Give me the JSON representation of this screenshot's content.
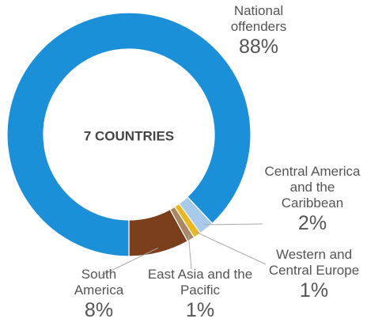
{
  "chart_data": {
    "type": "donut",
    "center_text": "7 COUNTRIES",
    "categories": [
      "National offenders",
      "Central America and the Caribbean",
      "Western and Central Europe",
      "East Asia and the Pacific",
      "South America"
    ],
    "values": [
      88,
      2,
      1,
      1,
      8
    ],
    "value_labels": [
      "88%",
      "2%",
      "1%",
      "1%",
      "8%"
    ],
    "colors": [
      "#1b8fd7",
      "#a9c9ea",
      "#e8b821",
      "#a88864",
      "#7b3f1c"
    ]
  }
}
